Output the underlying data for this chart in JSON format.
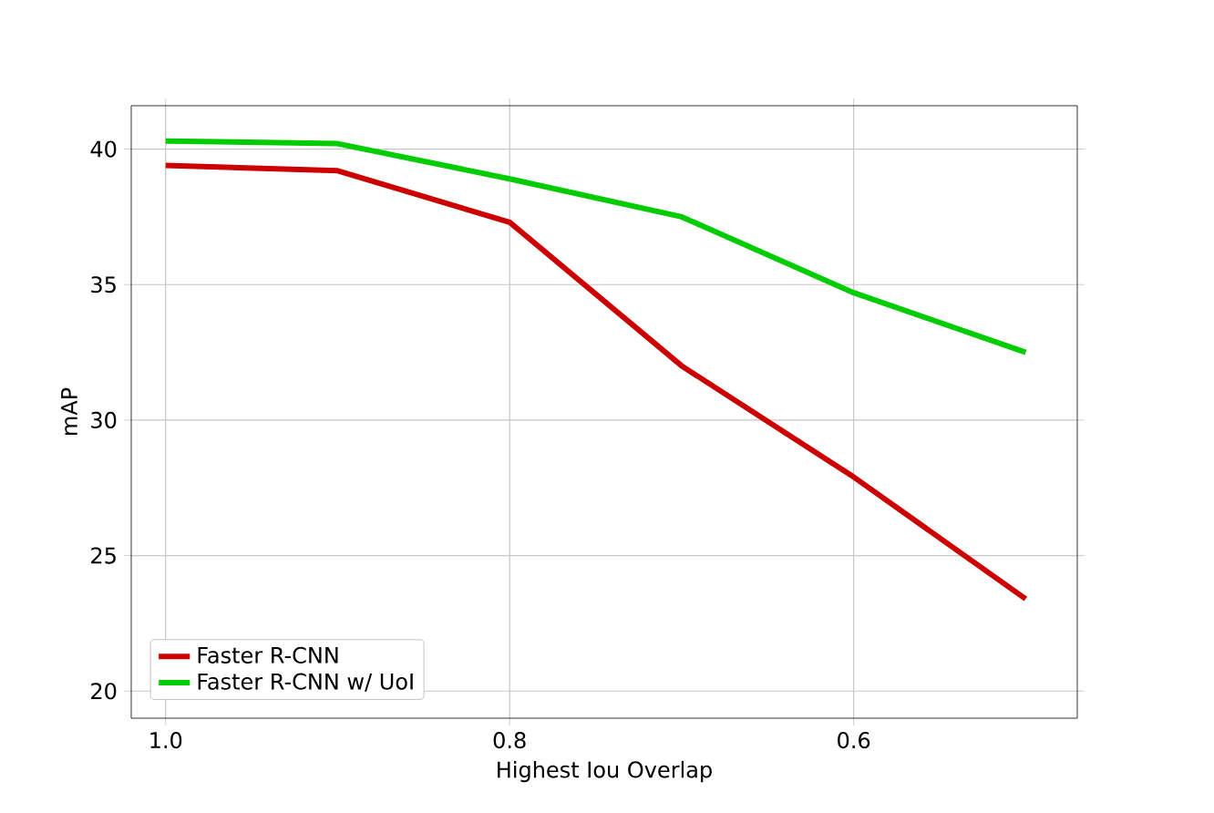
{
  "chart_data": {
    "type": "line",
    "xlabel": "Highest Iou Overlap",
    "ylabel": "mAP",
    "x": [
      1.0,
      0.9,
      0.8,
      0.7,
      0.6,
      0.5
    ],
    "series": [
      {
        "name": "Faster R-CNN",
        "color": "#cc0000",
        "values": [
          39.4,
          39.2,
          37.3,
          32.0,
          27.9,
          23.4
        ]
      },
      {
        "name": "Faster R-CNN w/ UoI",
        "color": "#00cc00",
        "values": [
          40.3,
          40.2,
          38.9,
          37.5,
          34.7,
          32.5
        ]
      }
    ],
    "xlim": [
      1.02,
      0.47
    ],
    "xticks": [
      {
        "value": 1.0,
        "label": "1.0"
      },
      0.8,
      0.6
    ],
    "ylim": [
      19.0,
      41.6
    ],
    "yticks": [
      20,
      25,
      30,
      35,
      40
    ],
    "grid": true,
    "legend": "bottom left",
    "marker": "none",
    "line_style": "solid"
  }
}
